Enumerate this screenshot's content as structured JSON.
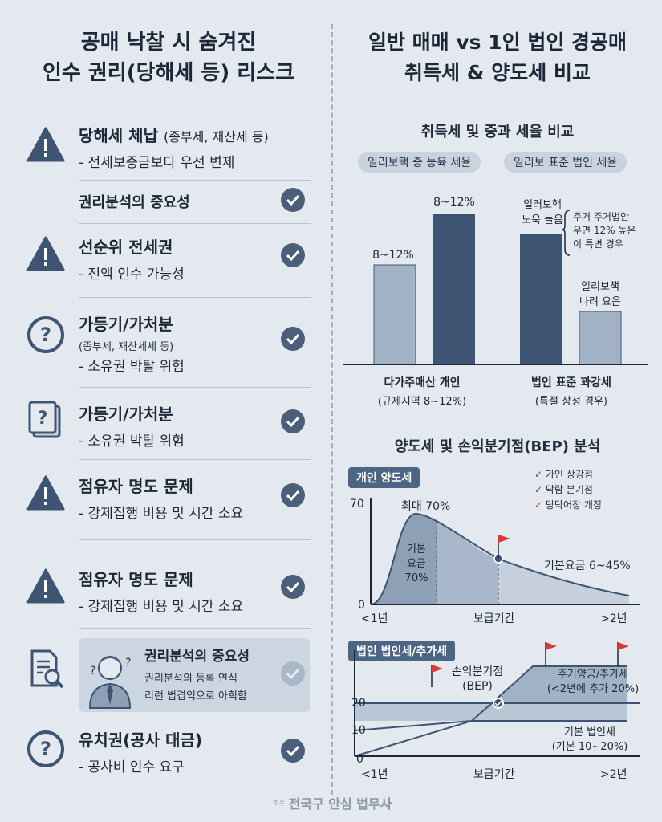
{
  "left": {
    "title_line1": "공매 낙찰 시 숨겨진",
    "title_line2": "인수 권리(당해세 등) 리스크",
    "items": [
      {
        "title": "당해세 체납",
        "title_extra": "(종부세, 재산세 등)",
        "sub": "- 전세보증금보다 우선 변제"
      },
      {
        "title": "권리분석의 중요성"
      },
      {
        "title": "선순위 전세권",
        "sub": "- 전액 인수 가능성"
      },
      {
        "title": "가등기/가처분",
        "note": "(종부세, 재산세세 등)",
        "sub": "- 소유권 박탈 위험"
      },
      {
        "title": "가등기/가처분",
        "sub": "- 소유권 박탈 위험"
      },
      {
        "title": "점유자 명도 문제",
        "sub": "- 강제집행 비용 및 시간 소요"
      },
      {
        "title": "점유자 명도 문제",
        "sub": "- 강제집행 비용 및 시간 소요"
      },
      {
        "title": "권리분석의 중요성",
        "sub1": "권리분석의 등록 연식",
        "sub2": "리런 법겹익으로 아힉함"
      },
      {
        "title": "유치권(공사 대금)",
        "sub": "- 공사비 인수 요구"
      }
    ]
  },
  "right": {
    "title_line1": "일반 매매 vs 1인 법인 경공매",
    "title_line2": "취득세 & 양도세 비교",
    "section1_title": "취득세 및 중과 세율 비교",
    "chip1": "일리보택 증 능육 세율",
    "chip2": "일리보 표준 법인 세율",
    "bar1_label": "8~12%",
    "bar2_label": "8~12%",
    "bar3_label1": "일러보핵",
    "bar3_label2": "노욱 늘음",
    "bar3_note1": "주거 주거법안",
    "bar3_note2": "우면 12% 높은",
    "bar3_note3": "이 특변 경우",
    "bar4_label1": "일리보책",
    "bar4_label2": "나려 요음",
    "group1_label": "다가주매산 개인",
    "group1_sub": "(규제지역 8~12%)",
    "group2_label": "법인 표준 꽈강세",
    "group2_sub": "(특절 상정 경우)",
    "section2_title": "양도세 및 손익분기점(BEP) 분석",
    "chart1_tag": "개인 양도세",
    "legend": [
      "가인 상강점",
      "닥람 분기점",
      "당탁어장 개정"
    ],
    "c1_y_top": "70",
    "c1_y_bottom": "0",
    "c1_peak": "최대 70%",
    "c1_inner1": "기본",
    "c1_inner2": "요금",
    "c1_inner3": "70%",
    "c1_tail": "기본요금 6~45%",
    "c1_x_left": "<1년",
    "c1_x_mid": "보급기간",
    "c1_x_right": ">2년",
    "chart2_tag": "법인 법인세/추가세",
    "c2_bep1": "손익분기점",
    "c2_bep2": "(BEP)",
    "c2_add1": "주거양긍/추가세",
    "c2_add2": "(<2년에 추가 20%)",
    "c2_base1": "기본 법인세",
    "c2_base2": "(기본 10~20%)",
    "c2_y20": "20",
    "c2_y10": "10",
    "c2_y0": "0",
    "c2_x_left": "<1년",
    "c2_x_mid": "보급기간",
    "c2_x_right": ">2년"
  },
  "footer": {
    "small": "법무",
    "text": "전국구 안심 법무사"
  },
  "colors": {
    "dark": "#3d5573",
    "light": "#a2b2c5",
    "check": "#4b5f7a",
    "red": "#d63a3a"
  }
}
